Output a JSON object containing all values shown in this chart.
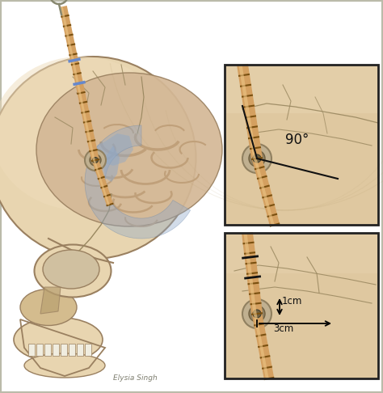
{
  "bg_color": "#ffffff",
  "skull_color": "#e8d5b0",
  "skull_mid": "#d4bc8e",
  "skull_shadow": "#b8a070",
  "skull_dark": "#9a8060",
  "brain_color": "#d4b896",
  "brain_gyri": "#c0a07a",
  "ventricle_color": "#8fa8c8",
  "ventricle_dark": "#6080a8",
  "drain_light": "#d4a060",
  "drain_mid": "#c08030",
  "drain_dark": "#7a5010",
  "bone_outer": "#c0b090",
  "bone_inner": "#908060",
  "bone_center": "#706040",
  "text_color": "#111111",
  "inset_bg": "#e8d0a8",
  "inset_skin": "#dfc8a0",
  "inset_border": "#222222",
  "suture_color": "#9a8860",
  "shadow_color": "#c0a878",
  "fig_width": 4.74,
  "fig_height": 4.86,
  "dpi": 100,
  "label_90": "90°",
  "label_1cm": "1cm",
  "label_3cm": "3cm"
}
